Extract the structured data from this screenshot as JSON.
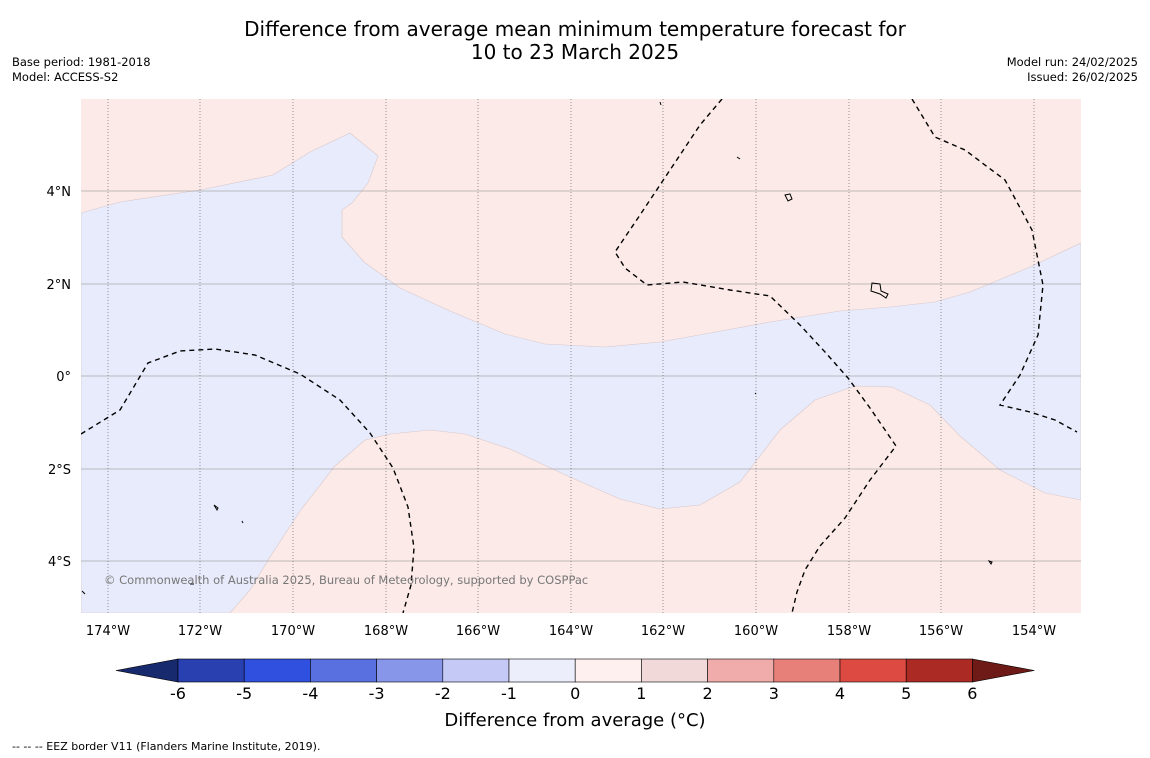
{
  "header": {
    "title_line1": "Difference from average mean minimum temperature forecast for",
    "title_line2": "10 to 23 March 2025",
    "base_period": "Base period: 1981-2018",
    "model": "Model: ACCESS-S2",
    "model_run": "Model run: 24/02/2025",
    "issued": "Issued: 26/02/2025"
  },
  "map": {
    "lon_labels": [
      "174°W",
      "172°W",
      "170°W",
      "168°W",
      "166°W",
      "164°W",
      "162°W",
      "160°W",
      "158°W",
      "156°W",
      "154°W"
    ],
    "lat_labels": [
      "4°N",
      "2°N",
      "0°",
      "2°S",
      "4°S"
    ],
    "copyright": "© Commonwealth of Australia 2025, Bureau of Meteorology, supported by COSPPac",
    "colors": {
      "warm_0_1": "#fbeae8",
      "cool_m1_0": "#e8ebfb",
      "grid": "#8a8a8a"
    }
  },
  "colorbar": {
    "ticks": [
      "-6",
      "-5",
      "-4",
      "-3",
      "-2",
      "-1",
      "0",
      "1",
      "2",
      "3",
      "4",
      "5",
      "6"
    ],
    "colors": [
      "#172a6e",
      "#2840b0",
      "#3050e0",
      "#5870e0",
      "#8896ea",
      "#c4c9f6",
      "#eceefb",
      "#fdf0ee",
      "#f0d9d8",
      "#efacaa",
      "#e8807a",
      "#dc4a42",
      "#ac2a24",
      "#6e1a16"
    ],
    "label": "Difference from average (°C)"
  },
  "footer": {
    "eez_note": "--  --  -- EEZ border V11 (Flanders Marine Institute, 2019)."
  }
}
